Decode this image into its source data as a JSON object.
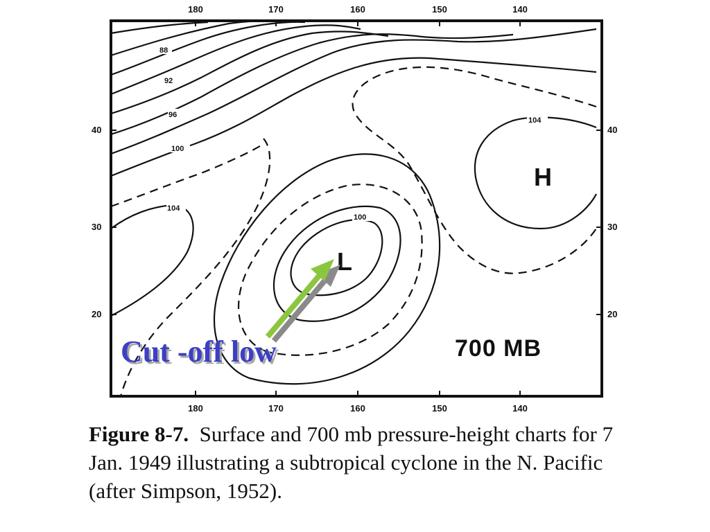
{
  "map": {
    "top_axis_labels": [
      "180",
      "170",
      "160",
      "150",
      "140"
    ],
    "bottom_axis_labels": [
      "180",
      "170",
      "160",
      "150",
      "140"
    ],
    "left_axis_labels": [
      "40",
      "30",
      "20"
    ],
    "right_axis_labels": [
      "40",
      "30",
      "20"
    ],
    "contour_labels": [
      "88",
      "92",
      "96",
      "100",
      "104",
      "100",
      "104"
    ],
    "high_center": "H",
    "low_center": "L",
    "level": "700 MB",
    "annotation": "Cut -off low",
    "arrow_color": "#8cc63f",
    "annotation_color": "#3d3fc4"
  },
  "caption": {
    "title": "Figure 8-7.",
    "text": "Surface and 700 mb pressure-height charts for 7 Jan. 1949 illustrating a subtropical cyclone in the N. Pacific (after Simpson, 1952)."
  }
}
